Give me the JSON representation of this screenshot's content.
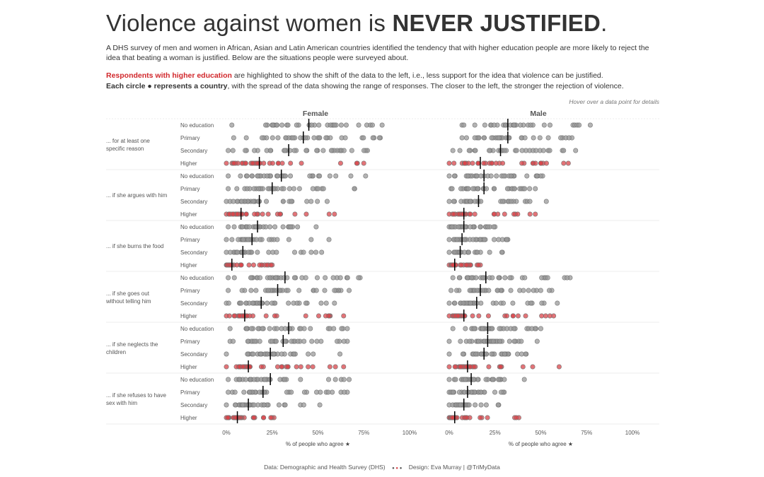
{
  "title": {
    "normal": "Violence against women is ",
    "bold": "NEVER JUSTIFIED",
    "end": "."
  },
  "intro": "A DHS survey of men and women in African, Asian and Latin American countries identified the tendency that with higher education people are more likely to reject the idea that beating a woman is justified. Below are the situations people were surveyed about.",
  "highlight": {
    "red": "Respondents with higher education",
    "rest": " are highlighted to show the shift of the data to the left, i.e., less support for the idea that violence can be justified."
  },
  "circle_note": {
    "bold": "Each circle ● represents a country",
    "rest": ", with the spread of the data showing the range of responses. The closer to the left, the stronger the rejection of violence."
  },
  "hover_note": "Hover over a data point for details",
  "footer": {
    "source": "Data: Demographic and Health Survey (DHS)",
    "dots": "● ● ●",
    "design": "Design: Eva Murray | @TriMyData"
  },
  "colors": {
    "grey": "#9a9a9a",
    "higher": "#d9444a",
    "median": "#000000",
    "title": "#333333"
  },
  "chart_data": {
    "type": "strip",
    "panels": [
      "Female",
      "Male"
    ],
    "xlabel": "% of people who agree",
    "xticks": [
      "0%",
      "25%",
      "50%",
      "75%",
      "100%"
    ],
    "xlim": [
      0,
      100
    ],
    "education_levels": [
      "No education",
      "Primary",
      "Secondary",
      "Higher"
    ],
    "situations": [
      {
        "label": "... for at least one specific reason",
        "female": [
          {
            "median": 45,
            "min": 3,
            "max": 85
          },
          {
            "median": 42,
            "min": 4,
            "max": 84
          },
          {
            "median": 34,
            "min": 1,
            "max": 77
          },
          {
            "median": 18,
            "min": 0,
            "max": 75
          }
        ],
        "male": [
          {
            "median": 32,
            "min": 7,
            "max": 77
          },
          {
            "median": 32,
            "min": 7,
            "max": 67
          },
          {
            "median": 28,
            "min": 2,
            "max": 69
          },
          {
            "median": 17,
            "min": 0,
            "max": 65
          }
        ]
      },
      {
        "label": "... if she argues with him",
        "female": [
          {
            "median": 30,
            "min": 1,
            "max": 76
          },
          {
            "median": 25,
            "min": 1,
            "max": 70
          },
          {
            "median": 18,
            "min": 0,
            "max": 55
          },
          {
            "median": 8,
            "min": 0,
            "max": 59
          }
        ],
        "male": [
          {
            "median": 19,
            "min": 0,
            "max": 51
          },
          {
            "median": 19,
            "min": 1,
            "max": 47
          },
          {
            "median": 16,
            "min": 0,
            "max": 53
          },
          {
            "median": 8,
            "min": 0,
            "max": 47
          }
        ]
      },
      {
        "label": "... if she burns the food",
        "female": [
          {
            "median": 17,
            "min": 1,
            "max": 49
          },
          {
            "median": 14,
            "min": 0,
            "max": 56
          },
          {
            "median": 9,
            "min": 0,
            "max": 52
          },
          {
            "median": 3,
            "min": 0,
            "max": 25
          }
        ],
        "male": [
          {
            "median": 8,
            "min": 0,
            "max": 25
          },
          {
            "median": 7,
            "min": 0,
            "max": 32
          },
          {
            "median": 6,
            "min": 0,
            "max": 29
          },
          {
            "median": 3,
            "min": 0,
            "max": 17
          }
        ]
      },
      {
        "label": "... if she goes out without telling him",
        "female": [
          {
            "median": 32,
            "min": 1,
            "max": 73
          },
          {
            "median": 28,
            "min": 1,
            "max": 67
          },
          {
            "median": 19,
            "min": 0,
            "max": 59
          },
          {
            "median": 10,
            "min": 0,
            "max": 64
          }
        ],
        "male": [
          {
            "median": 20,
            "min": 2,
            "max": 66
          },
          {
            "median": 17,
            "min": 1,
            "max": 56
          },
          {
            "median": 15,
            "min": 0,
            "max": 59
          },
          {
            "median": 8,
            "min": 0,
            "max": 57
          }
        ]
      },
      {
        "label": "... if she neglects the children",
        "female": [
          {
            "median": 34,
            "min": 2,
            "max": 66
          },
          {
            "median": 31,
            "min": 2,
            "max": 66
          },
          {
            "median": 24,
            "min": 0,
            "max": 62
          },
          {
            "median": 12,
            "min": 0,
            "max": 64
          }
        ],
        "male": [
          {
            "median": 21,
            "min": 2,
            "max": 50
          },
          {
            "median": 21,
            "min": 0,
            "max": 48
          },
          {
            "median": 19,
            "min": 0,
            "max": 42
          },
          {
            "median": 10,
            "min": 0,
            "max": 60
          }
        ]
      },
      {
        "label": "... if she refuses to have sex with him",
        "female": [
          {
            "median": 24,
            "min": 1,
            "max": 67
          },
          {
            "median": 20,
            "min": 1,
            "max": 66
          },
          {
            "median": 12,
            "min": 0,
            "max": 51
          },
          {
            "median": 6,
            "min": 0,
            "max": 26
          }
        ],
        "male": [
          {
            "median": 12,
            "min": 0,
            "max": 41
          },
          {
            "median": 10,
            "min": 0,
            "max": 30
          },
          {
            "median": 8,
            "min": 0,
            "max": 27
          },
          {
            "median": 3,
            "min": 0,
            "max": 38
          }
        ]
      }
    ]
  }
}
